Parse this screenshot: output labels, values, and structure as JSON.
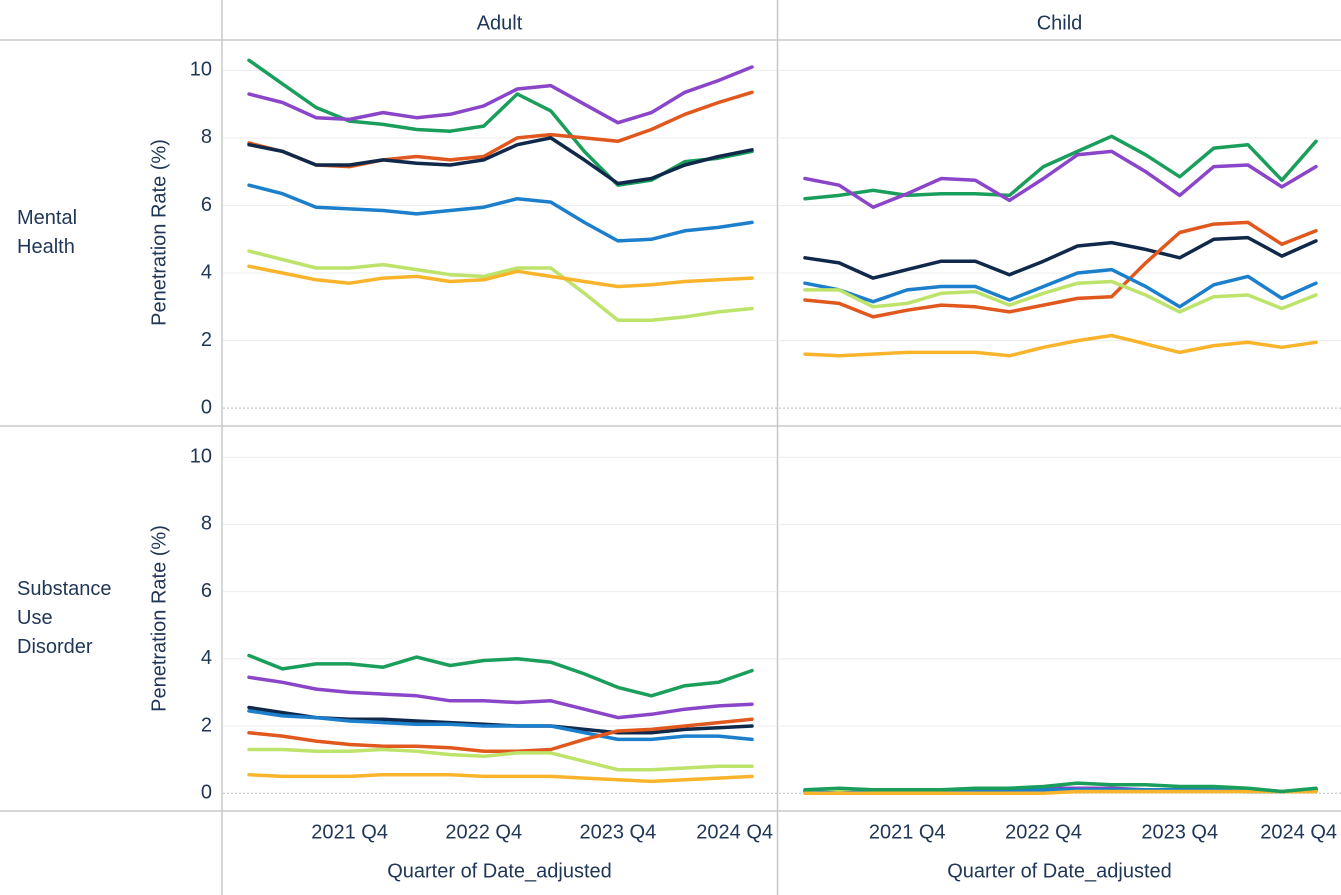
{
  "columns": [
    "Adult",
    "Child"
  ],
  "rows": [
    "Mental Health",
    "Substance Use Disorder"
  ],
  "chart_data": [
    {
      "type": "line",
      "y_label": "Penetration Rate (%)",
      "ylim": [
        -0.5,
        10.9
      ],
      "yticks": [
        0,
        2,
        4,
        6,
        8,
        10
      ],
      "grid": true,
      "series": [
        {
          "color": "#1a9e5c",
          "values": [
            10.3,
            9.6,
            8.9,
            8.5,
            8.4,
            8.25,
            8.2,
            8.35,
            9.3,
            8.8,
            7.6,
            6.6,
            6.75,
            7.3,
            7.4,
            7.6
          ]
        },
        {
          "color": "#8b45c8",
          "values": [
            9.3,
            9.05,
            8.6,
            8.55,
            8.75,
            8.6,
            8.7,
            8.95,
            9.45,
            9.55,
            9.0,
            8.45,
            8.75,
            9.35,
            9.7,
            10.1
          ]
        },
        {
          "color": "#e0581e",
          "values": [
            7.85,
            7.6,
            7.2,
            7.15,
            7.35,
            7.45,
            7.35,
            7.45,
            8.0,
            8.1,
            8.0,
            7.9,
            8.25,
            8.7,
            9.05,
            9.35
          ]
        },
        {
          "color": "#10294a",
          "values": [
            7.8,
            7.6,
            7.2,
            7.2,
            7.35,
            7.25,
            7.2,
            7.35,
            7.8,
            8.0,
            7.35,
            6.65,
            6.8,
            7.2,
            7.45,
            7.65
          ]
        },
        {
          "color": "#1b7fcc",
          "values": [
            6.6,
            6.35,
            5.95,
            5.9,
            5.85,
            5.75,
            5.85,
            5.95,
            6.2,
            6.1,
            5.5,
            4.95,
            5.0,
            5.25,
            5.35,
            5.5
          ]
        },
        {
          "color": "#bde36a",
          "values": [
            4.65,
            4.4,
            4.15,
            4.15,
            4.25,
            4.1,
            3.95,
            3.9,
            4.15,
            4.15,
            3.4,
            2.6,
            2.6,
            2.7,
            2.85,
            2.95
          ]
        },
        {
          "color": "#f9b42c",
          "values": [
            4.2,
            4.0,
            3.8,
            3.7,
            3.85,
            3.9,
            3.75,
            3.8,
            4.05,
            3.9,
            3.75,
            3.6,
            3.65,
            3.75,
            3.8,
            3.85
          ]
        }
      ]
    },
    {
      "type": "line",
      "series": [
        {
          "color": "#1a9e5c",
          "values": [
            6.2,
            6.3,
            6.45,
            6.3,
            6.35,
            6.35,
            6.3,
            7.15,
            7.6,
            8.05,
            7.5,
            6.85,
            7.7,
            7.8,
            6.75,
            7.9
          ]
        },
        {
          "color": "#8b45c8",
          "values": [
            6.8,
            6.6,
            5.95,
            6.35,
            6.8,
            6.75,
            6.15,
            6.8,
            7.5,
            7.6,
            7.0,
            6.3,
            7.15,
            7.2,
            6.55,
            7.15
          ]
        },
        {
          "color": "#10294a",
          "values": [
            4.45,
            4.3,
            3.85,
            4.1,
            4.35,
            4.35,
            3.95,
            4.35,
            4.8,
            4.9,
            4.7,
            4.45,
            5.0,
            5.05,
            4.5,
            4.95
          ]
        },
        {
          "color": "#e0581e",
          "values": [
            3.2,
            3.1,
            2.7,
            2.9,
            3.05,
            3.0,
            2.85,
            3.05,
            3.25,
            3.3,
            4.3,
            5.2,
            5.45,
            5.5,
            4.85,
            5.25
          ]
        },
        {
          "color": "#1b7fcc",
          "values": [
            3.7,
            3.5,
            3.15,
            3.5,
            3.6,
            3.6,
            3.2,
            3.6,
            4.0,
            4.1,
            3.6,
            3.0,
            3.65,
            3.9,
            3.25,
            3.7
          ]
        },
        {
          "color": "#bde36a",
          "values": [
            3.5,
            3.5,
            3.0,
            3.1,
            3.4,
            3.45,
            3.05,
            3.4,
            3.7,
            3.75,
            3.35,
            2.85,
            3.3,
            3.35,
            2.95,
            3.35
          ]
        },
        {
          "color": "#f9b42c",
          "values": [
            1.6,
            1.55,
            1.6,
            1.65,
            1.65,
            1.65,
            1.55,
            1.8,
            2.0,
            2.15,
            1.9,
            1.65,
            1.85,
            1.95,
            1.8,
            1.95
          ]
        }
      ]
    },
    {
      "type": "line",
      "y_label": "Penetration Rate (%)",
      "x_label": "Quarter of Date_adjusted",
      "ylim": [
        -0.5,
        10.9
      ],
      "yticks": [
        0,
        2,
        4,
        6,
        8,
        10
      ],
      "grid": true,
      "categories": [
        null,
        null,
        null,
        "2021 Q4",
        null,
        null,
        null,
        "2022 Q4",
        null,
        null,
        null,
        "2023 Q4",
        null,
        null,
        null,
        "2024 Q4"
      ],
      "series": [
        {
          "color": "#1a9e5c",
          "values": [
            4.1,
            3.7,
            3.85,
            3.85,
            3.75,
            4.05,
            3.8,
            3.95,
            4.0,
            3.9,
            3.55,
            3.15,
            2.9,
            3.2,
            3.3,
            3.65
          ]
        },
        {
          "color": "#8b45c8",
          "values": [
            3.45,
            3.3,
            3.1,
            3.0,
            2.95,
            2.9,
            2.75,
            2.75,
            2.7,
            2.75,
            2.5,
            2.25,
            2.35,
            2.5,
            2.6,
            2.65
          ]
        },
        {
          "color": "#10294a",
          "values": [
            2.55,
            2.4,
            2.25,
            2.2,
            2.2,
            2.15,
            2.1,
            2.05,
            2.0,
            2.0,
            1.9,
            1.8,
            1.8,
            1.9,
            1.95,
            2.0
          ]
        },
        {
          "color": "#1b7fcc",
          "values": [
            2.45,
            2.3,
            2.25,
            2.15,
            2.1,
            2.05,
            2.05,
            2.0,
            2.0,
            2.0,
            1.8,
            1.6,
            1.6,
            1.7,
            1.7,
            1.6
          ]
        },
        {
          "color": "#e0581e",
          "values": [
            1.8,
            1.7,
            1.55,
            1.45,
            1.4,
            1.4,
            1.35,
            1.25,
            1.25,
            1.3,
            1.6,
            1.85,
            1.9,
            2.0,
            2.1,
            2.2
          ]
        },
        {
          "color": "#bde36a",
          "values": [
            1.3,
            1.3,
            1.25,
            1.25,
            1.3,
            1.25,
            1.15,
            1.1,
            1.2,
            1.2,
            0.95,
            0.7,
            0.7,
            0.75,
            0.8,
            0.8
          ]
        },
        {
          "color": "#f9b42c",
          "values": [
            0.55,
            0.5,
            0.5,
            0.5,
            0.55,
            0.55,
            0.55,
            0.5,
            0.5,
            0.5,
            0.45,
            0.4,
            0.35,
            0.4,
            0.45,
            0.5
          ]
        }
      ]
    },
    {
      "type": "line",
      "x_label": "Quarter of Date_adjusted",
      "categories": [
        null,
        null,
        null,
        "2021 Q4",
        null,
        null,
        null,
        "2022 Q4",
        null,
        null,
        null,
        "2023 Q4",
        null,
        null,
        null,
        "2024 Q4"
      ],
      "series": [
        {
          "color": "#8b45c8",
          "values": [
            0.05,
            0.1,
            0.1,
            0.1,
            0.1,
            0.1,
            0.1,
            0.15,
            0.15,
            0.15,
            0.1,
            0.1,
            0.1,
            0.1,
            0.05,
            0.1
          ]
        },
        {
          "color": "#10294a",
          "values": [
            0.05,
            0.05,
            0.05,
            0.05,
            0.1,
            0.1,
            0.1,
            0.1,
            0.1,
            0.1,
            0.1,
            0.1,
            0.1,
            0.1,
            0.05,
            0.1
          ]
        },
        {
          "color": "#e0581e",
          "values": [
            0.05,
            0.05,
            0.05,
            0.05,
            0.05,
            0.05,
            0.05,
            0.05,
            0.05,
            0.1,
            0.1,
            0.1,
            0.1,
            0.1,
            0.05,
            0.05
          ]
        },
        {
          "color": "#bde36a",
          "values": [
            0.05,
            0.05,
            0.05,
            0.05,
            0.05,
            0.05,
            0.05,
            0.05,
            0.05,
            0.05,
            0.05,
            0.05,
            0.05,
            0.05,
            0.05,
            0.05
          ]
        },
        {
          "color": "#1b7fcc",
          "values": [
            0.05,
            0,
            0.05,
            0.05,
            0.05,
            0.1,
            0.1,
            0.1,
            0.1,
            0.1,
            0.1,
            0.1,
            0.1,
            0.05,
            0.05,
            0.1
          ]
        },
        {
          "color": "#f9b42c",
          "values": [
            0,
            0,
            0,
            0,
            0,
            0,
            0,
            0,
            0.05,
            0.05,
            0.05,
            0.05,
            0.05,
            0.05,
            0.05,
            0.05
          ]
        },
        {
          "color": "#1a9e5c",
          "values": [
            0.1,
            0.15,
            0.1,
            0.1,
            0.1,
            0.15,
            0.15,
            0.2,
            0.3,
            0.25,
            0.25,
            0.2,
            0.2,
            0.15,
            0.05,
            0.15
          ]
        }
      ]
    }
  ]
}
